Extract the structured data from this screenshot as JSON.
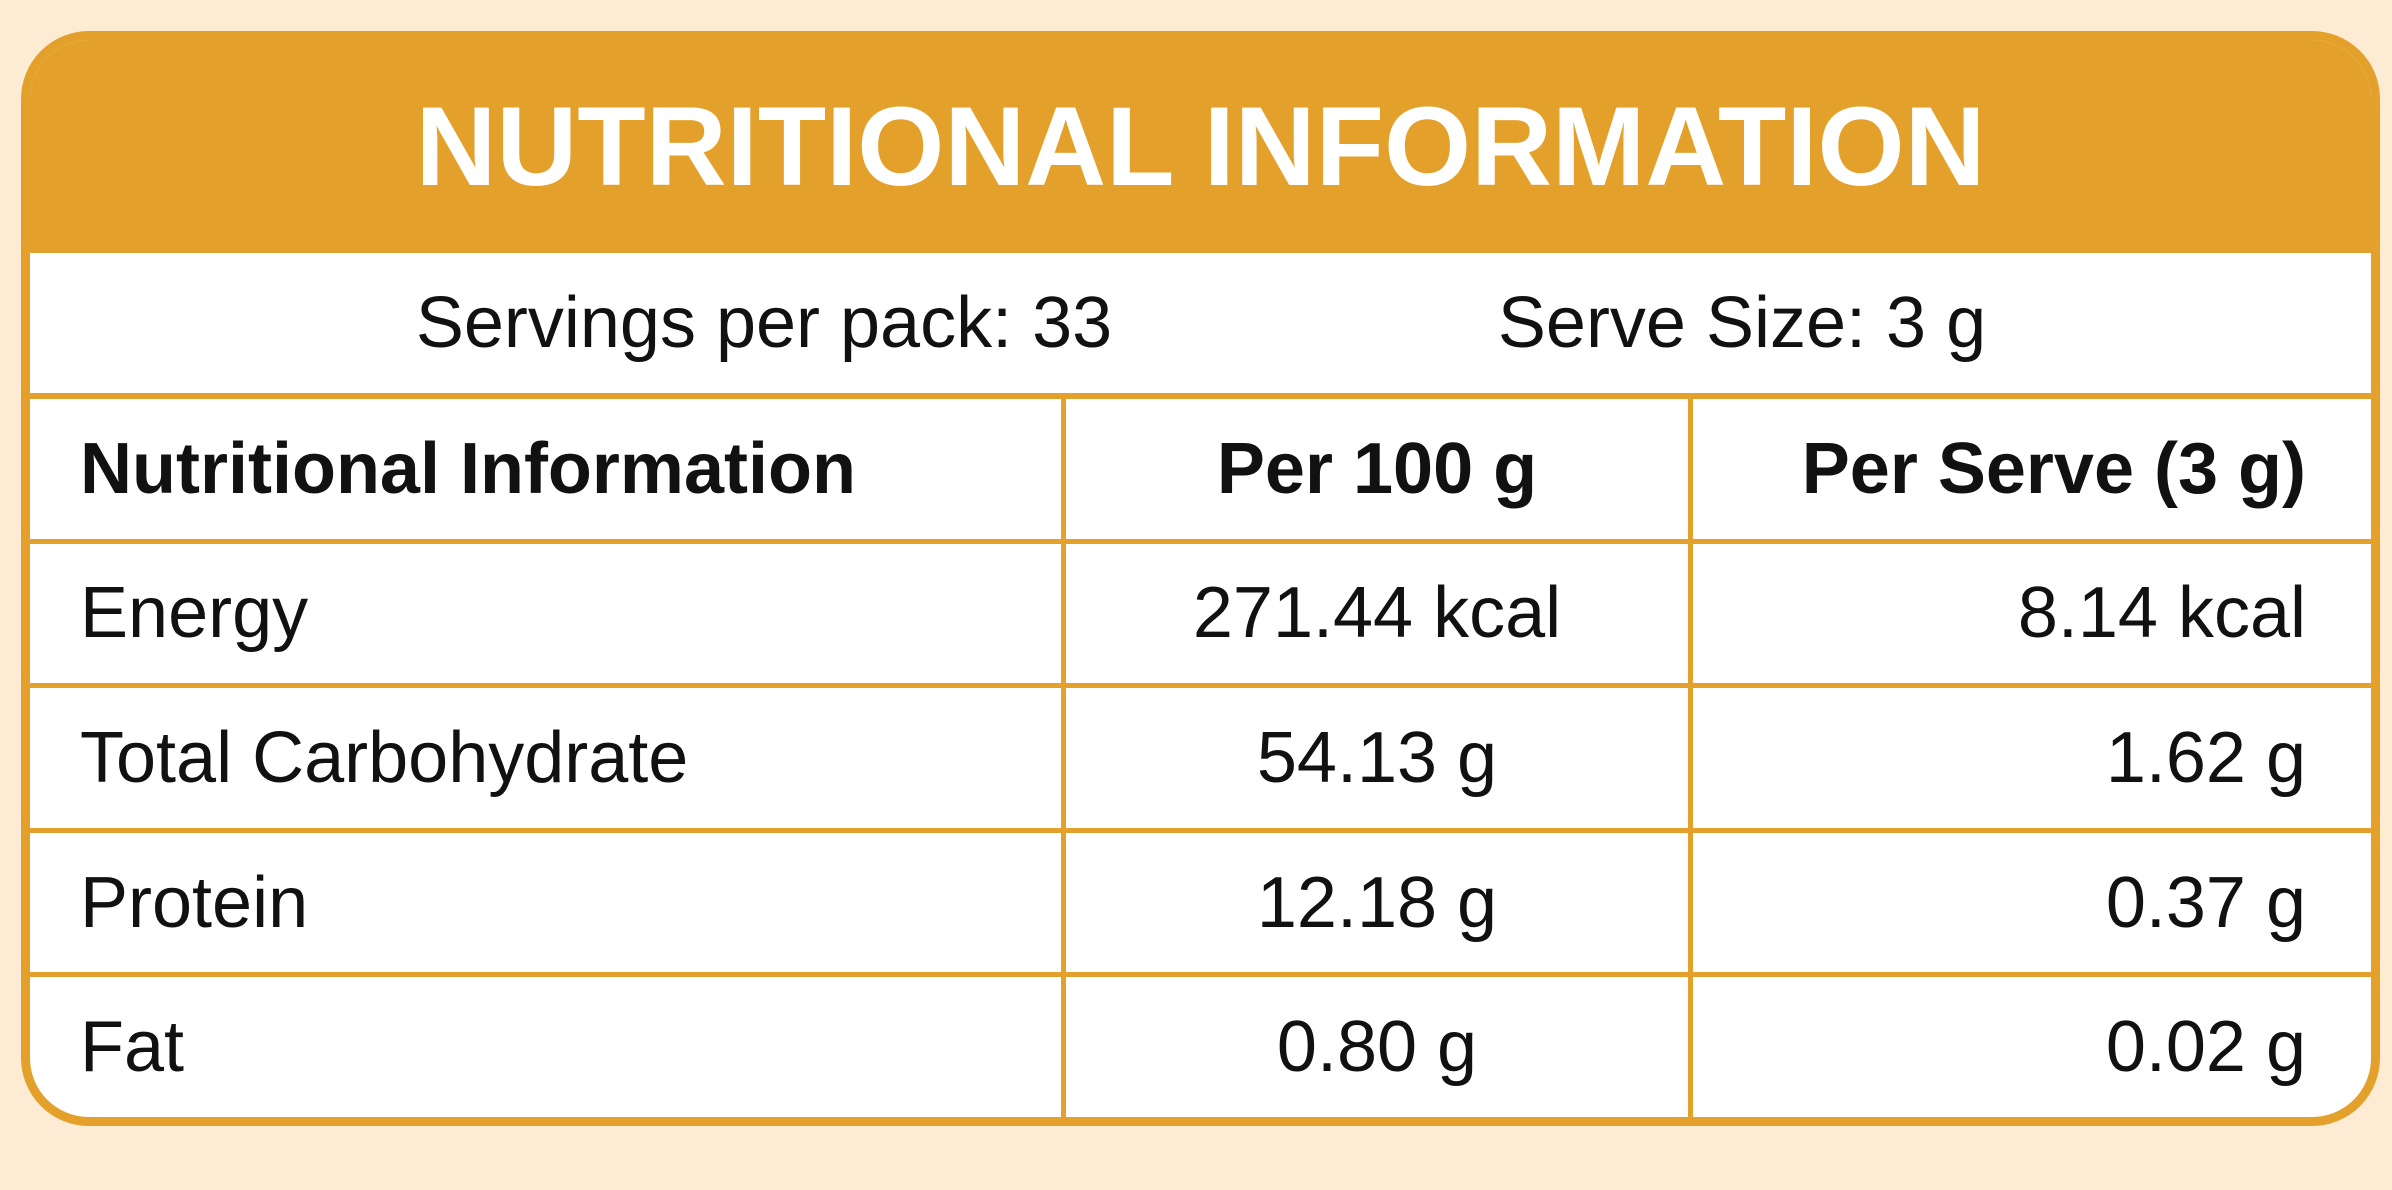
{
  "header": {
    "title": "NUTRITIONAL INFORMATION"
  },
  "servings": {
    "per_pack": "Servings per pack: 33",
    "serve_size": "Serve Size: 3 g"
  },
  "table": {
    "columns": [
      "Nutritional Information",
      "Per 100 g",
      "Per Serve (3 g)"
    ],
    "rows": [
      [
        "Energy",
        "271.44 kcal",
        "8.14 kcal"
      ],
      [
        "Total Carbohydrate",
        "54.13 g",
        "1.62 g"
      ],
      [
        "Protein",
        "12.18 g",
        "0.37 g"
      ],
      [
        "Fat",
        "0.80 g",
        "0.02 g"
      ]
    ]
  }
}
